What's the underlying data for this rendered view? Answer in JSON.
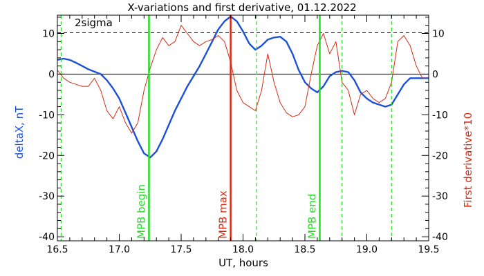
{
  "chart_data": {
    "type": "line",
    "title": "X-variations and first derivative, 01.12.2022",
    "xlabel": "UT, hours",
    "ylabel_left": "deltaX, nT",
    "ylabel_right": "First derivative*10",
    "xlim": [
      16.5,
      19.5
    ],
    "ylim": [
      -41,
      14.5
    ],
    "x_ticks": [
      16.5,
      17.0,
      17.5,
      18.0,
      18.5,
      19.0,
      19.5
    ],
    "x_tick_labels": [
      "16.5",
      "17.0",
      "17.5",
      "18.0",
      "18.5",
      "19.0",
      "19.5"
    ],
    "y_ticks": [
      10,
      0,
      -10,
      -20,
      -30,
      -40
    ],
    "y_tick_labels_left": [
      "10",
      "0",
      "-10",
      "-20",
      "-30",
      "-40"
    ],
    "y_tick_labels_right": [
      "10",
      "0",
      "-10",
      "-20",
      "-30",
      "-40"
    ],
    "sigma_level": 10.2,
    "sigma_label": "2sigma",
    "zero_line": 0,
    "colors": {
      "deltaX": "#1a4fd8",
      "derivative": "#d62a10",
      "mpb_begin_end": "#22dd22",
      "mpb_max": "#dd2a10",
      "dashed_green": "#22dd22",
      "sigma_line": "#000000"
    },
    "series": [
      {
        "key": "deltaX",
        "x": [
          16.5,
          16.55,
          16.6,
          16.65,
          16.7,
          16.75,
          16.8,
          16.85,
          16.9,
          16.95,
          17.0,
          17.05,
          17.1,
          17.15,
          17.2,
          17.25,
          17.3,
          17.35,
          17.4,
          17.45,
          17.5,
          17.55,
          17.6,
          17.65,
          17.7,
          17.75,
          17.8,
          17.85,
          17.9,
          17.95,
          18.0,
          18.05,
          18.1,
          18.15,
          18.2,
          18.25,
          18.3,
          18.35,
          18.4,
          18.45,
          18.5,
          18.55,
          18.6,
          18.65,
          18.7,
          18.75,
          18.8,
          18.85,
          18.9,
          18.95,
          19.0,
          19.05,
          19.1,
          19.15,
          19.2,
          19.25,
          19.3,
          19.35,
          19.4,
          19.45,
          19.5
        ],
        "y": [
          3.5,
          3.8,
          3.5,
          2.8,
          2.0,
          1.2,
          0.6,
          0.0,
          -1.5,
          -3.5,
          -6.0,
          -9.5,
          -13.0,
          -16.5,
          -19.5,
          -20.5,
          -19.0,
          -16.0,
          -12.5,
          -9.0,
          -6.0,
          -3.0,
          -0.5,
          2.0,
          5.0,
          8.0,
          11.0,
          13.0,
          14.2,
          13.0,
          10.5,
          7.5,
          6.0,
          7.0,
          8.5,
          9.0,
          9.2,
          8.0,
          5.0,
          1.0,
          -2.0,
          -3.5,
          -4.5,
          -3.0,
          -0.5,
          0.5,
          0.8,
          0.5,
          -1.5,
          -4.5,
          -6.0,
          -7.0,
          -7.5,
          -8.0,
          -7.5,
          -5.0,
          -2.5,
          -1.0,
          -1.0,
          -1.0,
          -1.0
        ]
      },
      {
        "key": "derivative",
        "x": [
          16.5,
          16.55,
          16.6,
          16.65,
          16.7,
          16.75,
          16.8,
          16.85,
          16.9,
          16.95,
          17.0,
          17.05,
          17.1,
          17.15,
          17.2,
          17.25,
          17.3,
          17.35,
          17.4,
          17.45,
          17.5,
          17.55,
          17.6,
          17.65,
          17.7,
          17.75,
          17.8,
          17.85,
          17.9,
          17.95,
          18.0,
          18.05,
          18.1,
          18.15,
          18.2,
          18.25,
          18.3,
          18.35,
          18.4,
          18.45,
          18.5,
          18.55,
          18.6,
          18.65,
          18.7,
          18.75,
          18.8,
          18.85,
          18.9,
          18.95,
          19.0,
          19.05,
          19.1,
          19.15,
          19.2,
          19.25,
          19.3,
          19.35,
          19.4,
          19.45,
          19.5
        ],
        "y": [
          1.0,
          -1.0,
          -2.0,
          -2.5,
          -3.0,
          -3.0,
          -1.0,
          -4.0,
          -9.0,
          -11.0,
          -8.0,
          -12.0,
          -14.5,
          -12.0,
          -4.0,
          1.5,
          6.0,
          9.0,
          7.0,
          8.0,
          12.0,
          10.0,
          8.0,
          7.0,
          8.0,
          8.5,
          9.5,
          8.0,
          3.0,
          -4.0,
          -7.0,
          -8.0,
          -9.0,
          -4.0,
          5.0,
          -2.0,
          -7.0,
          -9.5,
          -10.5,
          -10.0,
          -8.0,
          0.0,
          7.0,
          10.0,
          5.0,
          8.0,
          -2.0,
          -4.0,
          -10.0,
          -5.0,
          -4.0,
          -6.0,
          -7.0,
          -6.0,
          -2.0,
          8.0,
          9.5,
          7.0,
          2.0,
          -1.0,
          -1.0
        ]
      }
    ],
    "markers": [
      {
        "x": 17.24,
        "label": "MPB begin",
        "style": "solid",
        "color": "#22dd22"
      },
      {
        "x": 17.9,
        "label": "MPB max",
        "style": "solid",
        "color": "#dd2a10"
      },
      {
        "x": 18.62,
        "label": "MPB end",
        "style": "solid",
        "color": "#22dd22"
      },
      {
        "x": 16.53,
        "label": "",
        "style": "dashed",
        "color": "#22dd22"
      },
      {
        "x": 18.11,
        "label": "",
        "style": "dashed",
        "color": "#22dd22"
      },
      {
        "x": 18.8,
        "label": "",
        "style": "dashed",
        "color": "#22dd22"
      },
      {
        "x": 19.2,
        "label": "",
        "style": "dashed",
        "color": "#22dd22"
      }
    ]
  }
}
